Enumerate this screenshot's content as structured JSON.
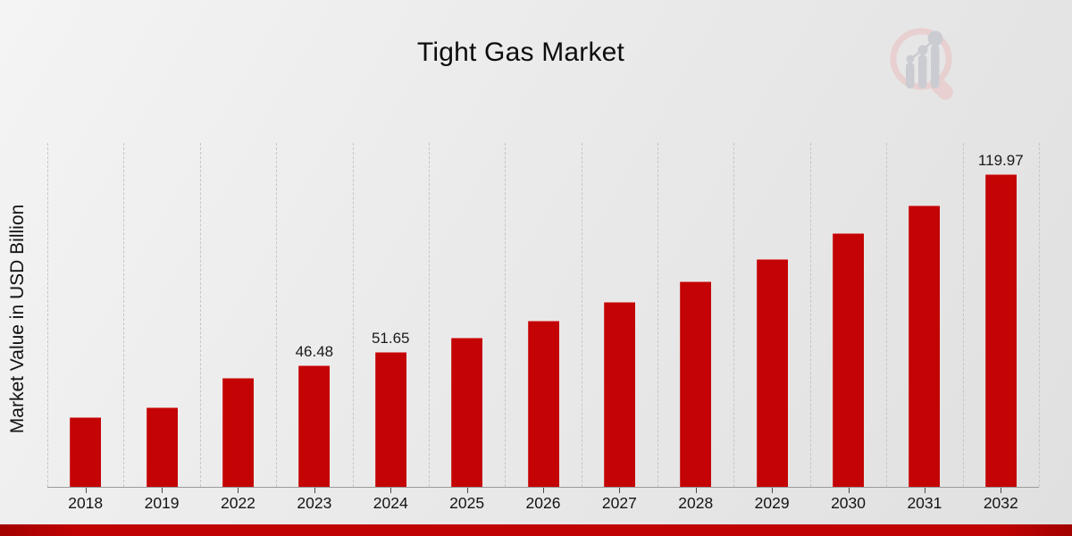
{
  "title": "Tight Gas Market",
  "y_axis_label": "Market Value in USD Billion",
  "watermark_icon": "magnifier-bar-chart-logo",
  "colors": {
    "bar": "#c40404",
    "accent_strip": "#c00202",
    "gridline": "#c6c6c6",
    "axis_line": "#9b9b9b",
    "title_text": "#0d0d0d",
    "watermark_pink": "#e8cfd0",
    "watermark_gray": "#cbccd2"
  },
  "chart_data": {
    "type": "bar",
    "title": "Tight Gas Market",
    "xlabel": "",
    "ylabel": "Market Value in USD Billion",
    "categories": [
      "2018",
      "2019",
      "2022",
      "2023",
      "2024",
      "2025",
      "2026",
      "2027",
      "2028",
      "2029",
      "2030",
      "2031",
      "2032"
    ],
    "values": [
      26.9,
      30.4,
      41.83,
      46.48,
      51.65,
      57.39,
      63.77,
      70.86,
      78.74,
      87.49,
      97.22,
      108.03,
      119.97
    ],
    "value_labels": [
      "",
      "",
      "",
      "46.48",
      "51.65",
      "",
      "",
      "",
      "",
      "",
      "",
      "",
      "119.97"
    ],
    "ylim": [
      0,
      132
    ],
    "grid": "vertical-dashed",
    "legend": "none",
    "bar_color": "#c40404",
    "annotation_note": "only 2023, 2024 and 2032 bars carry data labels"
  }
}
